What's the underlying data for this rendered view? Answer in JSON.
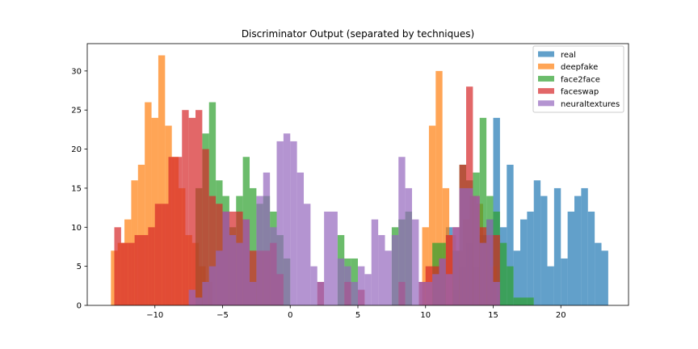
{
  "chart_data": {
    "type": "bar",
    "title": "Discriminator Output (separated by techniques)",
    "xlabel": "",
    "ylabel": "",
    "xlim": [
      -15.0,
      25.0
    ],
    "ylim": [
      0,
      33.5
    ],
    "xticks": [
      -10,
      -5,
      0,
      5,
      10,
      15,
      20
    ],
    "yticks": [
      0,
      5,
      10,
      15,
      20,
      25,
      30
    ],
    "grid": false,
    "legend_position": "upper right",
    "bar_alpha": 0.7,
    "series": [
      {
        "name": "real",
        "color": "#1f77b4",
        "bins": [
          {
            "x0": 11.5,
            "x1": 12.0,
            "h": 10
          },
          {
            "x0": 12.0,
            "x1": 12.5,
            "h": 2
          },
          {
            "x0": 12.5,
            "x1": 13.0,
            "h": 5
          },
          {
            "x0": 13.0,
            "x1": 13.5,
            "h": 8
          },
          {
            "x0": 13.5,
            "x1": 14.0,
            "h": 5
          },
          {
            "x0": 14.0,
            "x1": 14.5,
            "h": 9
          },
          {
            "x0": 14.5,
            "x1": 15.0,
            "h": 11
          },
          {
            "x0": 15.0,
            "x1": 15.5,
            "h": 24
          },
          {
            "x0": 15.5,
            "x1": 16.0,
            "h": 10
          },
          {
            "x0": 16.0,
            "x1": 16.5,
            "h": 18
          },
          {
            "x0": 16.5,
            "x1": 17.0,
            "h": 7
          },
          {
            "x0": 17.0,
            "x1": 17.5,
            "h": 11
          },
          {
            "x0": 17.5,
            "x1": 18.0,
            "h": 12
          },
          {
            "x0": 18.0,
            "x1": 18.5,
            "h": 16
          },
          {
            "x0": 18.5,
            "x1": 19.0,
            "h": 14
          },
          {
            "x0": 19.0,
            "x1": 19.5,
            "h": 5
          },
          {
            "x0": 19.5,
            "x1": 20.0,
            "h": 15
          },
          {
            "x0": 20.0,
            "x1": 20.5,
            "h": 6
          },
          {
            "x0": 20.5,
            "x1": 21.0,
            "h": 12
          },
          {
            "x0": 21.0,
            "x1": 21.5,
            "h": 14
          },
          {
            "x0": 21.5,
            "x1": 22.0,
            "h": 15
          },
          {
            "x0": 22.0,
            "x1": 22.5,
            "h": 12
          },
          {
            "x0": 22.5,
            "x1": 23.0,
            "h": 8
          },
          {
            "x0": 23.0,
            "x1": 23.5,
            "h": 7
          }
        ]
      },
      {
        "name": "deepfake",
        "color": "#ff7f0e",
        "bins": [
          {
            "x0": -13.25,
            "x1": -12.75,
            "h": 7
          },
          {
            "x0": -12.75,
            "x1": -12.25,
            "h": 8
          },
          {
            "x0": -12.25,
            "x1": -11.75,
            "h": 11
          },
          {
            "x0": -11.75,
            "x1": -11.25,
            "h": 16
          },
          {
            "x0": -11.25,
            "x1": -10.75,
            "h": 18
          },
          {
            "x0": -10.75,
            "x1": -10.25,
            "h": 26
          },
          {
            "x0": -10.25,
            "x1": -9.75,
            "h": 24
          },
          {
            "x0": -9.75,
            "x1": -9.25,
            "h": 32
          },
          {
            "x0": -9.25,
            "x1": -8.75,
            "h": 23
          },
          {
            "x0": -8.75,
            "x1": -8.25,
            "h": 19
          },
          {
            "x0": -8.25,
            "x1": -7.75,
            "h": 15
          },
          {
            "x0": -7.75,
            "x1": -7.25,
            "h": 9
          },
          {
            "x0": -7.25,
            "x1": -6.75,
            "h": 8
          },
          {
            "x0": -6.75,
            "x1": -6.25,
            "h": 5
          },
          {
            "x0": -6.25,
            "x1": -5.75,
            "h": 3
          },
          {
            "x0": 9.75,
            "x1": 10.25,
            "h": 10
          },
          {
            "x0": 10.25,
            "x1": 10.75,
            "h": 23
          },
          {
            "x0": 10.75,
            "x1": 11.25,
            "h": 30
          },
          {
            "x0": 11.25,
            "x1": 11.75,
            "h": 15
          },
          {
            "x0": 11.75,
            "x1": 12.25,
            "h": 9
          },
          {
            "x0": 12.25,
            "x1": 12.75,
            "h": 7
          },
          {
            "x0": 12.75,
            "x1": 13.25,
            "h": 11
          },
          {
            "x0": 13.25,
            "x1": 13.75,
            "h": 14
          },
          {
            "x0": 13.75,
            "x1": 14.25,
            "h": 13
          },
          {
            "x0": 14.25,
            "x1": 14.75,
            "h": 8
          },
          {
            "x0": 14.75,
            "x1": 15.25,
            "h": 5
          }
        ]
      },
      {
        "name": "face2face",
        "color": "#2ca02c",
        "bins": [
          {
            "x0": -7.0,
            "x1": -6.5,
            "h": 15
          },
          {
            "x0": -6.5,
            "x1": -6.0,
            "h": 22
          },
          {
            "x0": -6.0,
            "x1": -5.5,
            "h": 26
          },
          {
            "x0": -5.5,
            "x1": -5.0,
            "h": 16
          },
          {
            "x0": -5.0,
            "x1": -4.5,
            "h": 14
          },
          {
            "x0": -4.5,
            "x1": -4.0,
            "h": 10
          },
          {
            "x0": -4.0,
            "x1": -3.5,
            "h": 14
          },
          {
            "x0": -3.5,
            "x1": -3.0,
            "h": 19
          },
          {
            "x0": -3.0,
            "x1": -2.5,
            "h": 15
          },
          {
            "x0": -2.5,
            "x1": -2.0,
            "h": 13
          },
          {
            "x0": -2.0,
            "x1": -1.5,
            "h": 14
          },
          {
            "x0": -1.5,
            "x1": -1.0,
            "h": 12
          },
          {
            "x0": -1.0,
            "x1": -0.5,
            "h": 9
          },
          {
            "x0": -0.5,
            "x1": 0.0,
            "h": 6
          },
          {
            "x0": 3.5,
            "x1": 4.0,
            "h": 9
          },
          {
            "x0": 4.0,
            "x1": 4.5,
            "h": 6
          },
          {
            "x0": 4.5,
            "x1": 5.0,
            "h": 6
          },
          {
            "x0": 7.5,
            "x1": 8.0,
            "h": 10
          },
          {
            "x0": 8.0,
            "x1": 8.5,
            "h": 11
          },
          {
            "x0": 8.5,
            "x1": 9.0,
            "h": 12
          },
          {
            "x0": 10.5,
            "x1": 11.0,
            "h": 8
          },
          {
            "x0": 11.0,
            "x1": 11.5,
            "h": 8
          },
          {
            "x0": 12.0,
            "x1": 12.5,
            "h": 7
          },
          {
            "x0": 12.5,
            "x1": 13.0,
            "h": 18
          },
          {
            "x0": 13.0,
            "x1": 13.5,
            "h": 16
          },
          {
            "x0": 13.5,
            "x1": 14.0,
            "h": 17
          },
          {
            "x0": 14.0,
            "x1": 14.5,
            "h": 24
          },
          {
            "x0": 14.5,
            "x1": 15.0,
            "h": 14
          },
          {
            "x0": 15.0,
            "x1": 15.5,
            "h": 12
          },
          {
            "x0": 15.5,
            "x1": 16.0,
            "h": 8
          },
          {
            "x0": 16.0,
            "x1": 16.5,
            "h": 5
          },
          {
            "x0": 16.5,
            "x1": 17.0,
            "h": 1
          },
          {
            "x0": 17.0,
            "x1": 17.5,
            "h": 1
          },
          {
            "x0": 17.5,
            "x1": 18.0,
            "h": 1
          }
        ]
      },
      {
        "name": "faceswap",
        "color": "#d62728",
        "bins": [
          {
            "x0": -13.0,
            "x1": -12.5,
            "h": 10
          },
          {
            "x0": -12.5,
            "x1": -12.0,
            "h": 8
          },
          {
            "x0": -12.0,
            "x1": -11.5,
            "h": 8
          },
          {
            "x0": -11.5,
            "x1": -11.0,
            "h": 9
          },
          {
            "x0": -11.0,
            "x1": -10.5,
            "h": 9
          },
          {
            "x0": -10.5,
            "x1": -10.0,
            "h": 10
          },
          {
            "x0": -10.0,
            "x1": -9.5,
            "h": 13
          },
          {
            "x0": -9.5,
            "x1": -9.0,
            "h": 13
          },
          {
            "x0": -9.0,
            "x1": -8.5,
            "h": 19
          },
          {
            "x0": -8.5,
            "x1": -8.0,
            "h": 19
          },
          {
            "x0": -8.0,
            "x1": -7.5,
            "h": 25
          },
          {
            "x0": -7.5,
            "x1": -7.0,
            "h": 24
          },
          {
            "x0": -7.0,
            "x1": -6.5,
            "h": 25
          },
          {
            "x0": -6.5,
            "x1": -6.0,
            "h": 20
          },
          {
            "x0": -6.0,
            "x1": -5.5,
            "h": 14
          },
          {
            "x0": -5.5,
            "x1": -5.0,
            "h": 13
          },
          {
            "x0": -5.0,
            "x1": -4.5,
            "h": 12
          },
          {
            "x0": -4.5,
            "x1": -4.0,
            "h": 12
          },
          {
            "x0": -4.0,
            "x1": -3.5,
            "h": 12
          },
          {
            "x0": -3.5,
            "x1": -3.0,
            "h": 11
          },
          {
            "x0": -3.0,
            "x1": -2.5,
            "h": 7
          },
          {
            "x0": -2.5,
            "x1": -2.0,
            "h": 7
          },
          {
            "x0": -2.0,
            "x1": -1.5,
            "h": 7
          },
          {
            "x0": -1.5,
            "x1": -1.0,
            "h": 8
          },
          {
            "x0": -1.0,
            "x1": -0.5,
            "h": 4
          },
          {
            "x0": 2.0,
            "x1": 2.5,
            "h": 3
          },
          {
            "x0": 4.0,
            "x1": 4.5,
            "h": 3
          },
          {
            "x0": 5.0,
            "x1": 5.5,
            "h": 2
          },
          {
            "x0": 8.0,
            "x1": 8.5,
            "h": 3
          },
          {
            "x0": 9.5,
            "x1": 10.0,
            "h": 3
          },
          {
            "x0": 10.0,
            "x1": 10.5,
            "h": 5
          },
          {
            "x0": 10.5,
            "x1": 11.0,
            "h": 5
          },
          {
            "x0": 11.0,
            "x1": 11.5,
            "h": 6
          },
          {
            "x0": 11.5,
            "x1": 12.0,
            "h": 9
          },
          {
            "x0": 12.0,
            "x1": 12.5,
            "h": 10
          },
          {
            "x0": 12.5,
            "x1": 13.0,
            "h": 18
          },
          {
            "x0": 13.0,
            "x1": 13.5,
            "h": 28
          },
          {
            "x0": 13.5,
            "x1": 14.0,
            "h": 14
          },
          {
            "x0": 14.0,
            "x1": 14.5,
            "h": 10
          },
          {
            "x0": 14.5,
            "x1": 15.0,
            "h": 9
          },
          {
            "x0": 15.0,
            "x1": 15.5,
            "h": 9
          }
        ]
      },
      {
        "name": "neuraltextures",
        "color": "#9467bd",
        "bins": [
          {
            "x0": -7.5,
            "x1": -7.0,
            "h": 2
          },
          {
            "x0": -7.0,
            "x1": -6.5,
            "h": 1
          },
          {
            "x0": -6.5,
            "x1": -6.0,
            "h": 3
          },
          {
            "x0": -6.0,
            "x1": -5.5,
            "h": 5
          },
          {
            "x0": -5.5,
            "x1": -5.0,
            "h": 7
          },
          {
            "x0": -5.0,
            "x1": -4.5,
            "h": 12
          },
          {
            "x0": -4.5,
            "x1": -4.0,
            "h": 9
          },
          {
            "x0": -4.0,
            "x1": -3.5,
            "h": 8
          },
          {
            "x0": -3.5,
            "x1": -3.0,
            "h": 11
          },
          {
            "x0": -3.0,
            "x1": -2.5,
            "h": 3
          },
          {
            "x0": -2.5,
            "x1": -2.0,
            "h": 14
          },
          {
            "x0": -2.0,
            "x1": -1.5,
            "h": 17
          },
          {
            "x0": -1.5,
            "x1": -1.0,
            "h": 10
          },
          {
            "x0": -1.0,
            "x1": -0.5,
            "h": 21
          },
          {
            "x0": -0.5,
            "x1": 0.0,
            "h": 22
          },
          {
            "x0": 0.0,
            "x1": 0.5,
            "h": 21
          },
          {
            "x0": 0.5,
            "x1": 1.0,
            "h": 17
          },
          {
            "x0": 1.0,
            "x1": 1.5,
            "h": 13
          },
          {
            "x0": 1.5,
            "x1": 2.0,
            "h": 5
          },
          {
            "x0": 2.0,
            "x1": 2.5,
            "h": 3
          },
          {
            "x0": 2.5,
            "x1": 3.0,
            "h": 12
          },
          {
            "x0": 3.0,
            "x1": 3.5,
            "h": 12
          },
          {
            "x0": 3.5,
            "x1": 4.0,
            "h": 6
          },
          {
            "x0": 4.0,
            "x1": 4.5,
            "h": 5
          },
          {
            "x0": 4.5,
            "x1": 5.0,
            "h": 3
          },
          {
            "x0": 5.0,
            "x1": 5.5,
            "h": 5
          },
          {
            "x0": 5.5,
            "x1": 6.0,
            "h": 4
          },
          {
            "x0": 6.0,
            "x1": 6.5,
            "h": 11
          },
          {
            "x0": 6.5,
            "x1": 7.0,
            "h": 9
          },
          {
            "x0": 7.0,
            "x1": 7.5,
            "h": 7
          },
          {
            "x0": 7.5,
            "x1": 8.0,
            "h": 9
          },
          {
            "x0": 8.0,
            "x1": 8.5,
            "h": 19
          },
          {
            "x0": 8.5,
            "x1": 9.0,
            "h": 15
          },
          {
            "x0": 9.0,
            "x1": 9.5,
            "h": 11
          },
          {
            "x0": 9.5,
            "x1": 10.0,
            "h": 3
          },
          {
            "x0": 10.0,
            "x1": 10.5,
            "h": 3
          },
          {
            "x0": 10.5,
            "x1": 11.0,
            "h": 4
          },
          {
            "x0": 11.0,
            "x1": 11.5,
            "h": 6
          },
          {
            "x0": 11.5,
            "x1": 12.0,
            "h": 4
          },
          {
            "x0": 12.0,
            "x1": 12.5,
            "h": 10
          },
          {
            "x0": 12.5,
            "x1": 13.0,
            "h": 15
          },
          {
            "x0": 13.0,
            "x1": 13.5,
            "h": 15
          },
          {
            "x0": 13.5,
            "x1": 14.0,
            "h": 14
          },
          {
            "x0": 14.0,
            "x1": 14.5,
            "h": 8
          },
          {
            "x0": 14.5,
            "x1": 15.0,
            "h": 11
          },
          {
            "x0": 15.0,
            "x1": 15.5,
            "h": 3
          }
        ]
      }
    ]
  }
}
